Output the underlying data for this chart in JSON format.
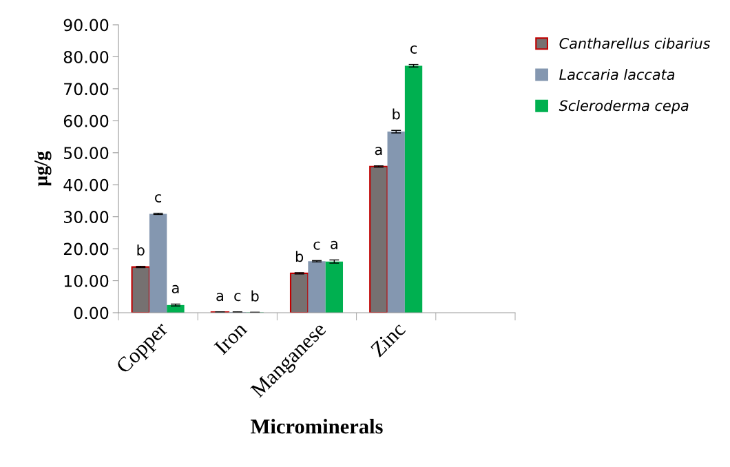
{
  "chart_data": {
    "type": "bar",
    "xlabel": "Microminerals",
    "ylabel": "µg/g",
    "categories": [
      "Copper",
      "Iron",
      "Manganese",
      "Zinc",
      null
    ],
    "series": [
      {
        "name": "Cantharellus cibarius",
        "color": "#767171",
        "values": [
          14.3,
          0.2,
          12.3,
          45.7,
          null
        ],
        "errors": [
          0.2,
          0.05,
          0.2,
          0.2,
          null
        ],
        "value_labels": [
          "b",
          "a",
          "b",
          "a",
          null
        ]
      },
      {
        "name": "Laccaria laccata",
        "color": "#8497b0",
        "values": [
          30.9,
          0.2,
          16.1,
          56.6,
          null
        ],
        "errors": [
          0.2,
          0.05,
          0.2,
          0.4,
          null
        ],
        "value_labels": [
          "c",
          "c",
          "c",
          "b",
          null
        ]
      },
      {
        "name": "Scleroderma cepa",
        "color": "#00b050",
        "values": [
          2.4,
          0.1,
          16.0,
          77.2,
          null
        ],
        "errors": [
          0.3,
          0.05,
          0.5,
          0.4,
          null
        ],
        "value_labels": [
          "a",
          "b",
          "a",
          "c",
          null
        ]
      }
    ],
    "ylim": [
      0,
      90
    ],
    "yticks": [
      {
        "value": 0,
        "label": "0.00"
      },
      {
        "value": 10,
        "label": "10.00"
      },
      {
        "value": 20,
        "label": "20.00"
      },
      {
        "value": 30,
        "label": "30.00"
      },
      {
        "value": 40,
        "label": "40.00"
      },
      {
        "value": 50,
        "label": "50.00"
      },
      {
        "value": 60,
        "label": "60.00"
      },
      {
        "value": 70,
        "label": "70.00"
      },
      {
        "value": 80,
        "label": "80.00"
      },
      {
        "value": 90,
        "label": "90.00"
      }
    ],
    "grid": false,
    "legend": "right"
  }
}
